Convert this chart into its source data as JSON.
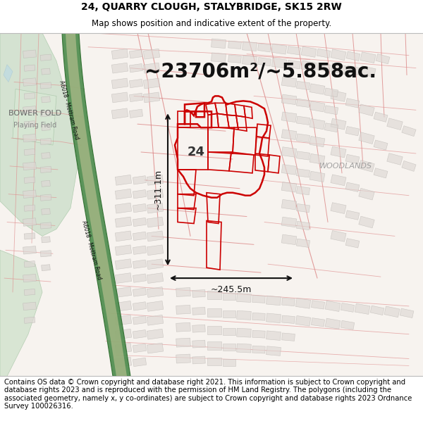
{
  "title_line1": "24, QUARRY CLOUGH, STALYBRIDGE, SK15 2RW",
  "title_line2": "Map shows position and indicative extent of the property.",
  "area_text": "~23706m²/~5.858ac.",
  "label_24": "24",
  "dimension_v": "~311.1m",
  "dimension_h": "~245.5m",
  "woodlands_label": "WOODLANDS",
  "bower_fold_label": "BOWER FOLD",
  "bower_fold_sub": "Playing Field",
  "road_label_top": "A6018 - Mottram Road",
  "road_label_bot": "A6018 - Mottram Road",
  "footer_text": "Contains OS data © Crown copyright and database right 2021. This information is subject to Crown copyright and database rights 2023 and is reproduced with the permission of HM Land Registry. The polygons (including the associated geometry, namely x, y co-ordinates) are subject to Crown copyright and database rights 2023 Ordnance Survey 100026316.",
  "bg_color": "#ffffff",
  "map_bg": "#f7f3ef",
  "highlight_color": "#cc0000",
  "green_area_color": "#d4e8d0",
  "road_band_color": "#4a8a4a",
  "road_inner_color": "#c8c8c8",
  "street_line_color": "#e08888",
  "building_face_color": "#e8e0e0",
  "building_edge_color": "#c88888",
  "grey_building_color": "#d8d4d0",
  "grey_building_edge": "#b8b4b0",
  "title_fontsize": 10,
  "subtitle_fontsize": 8.5,
  "area_fontsize": 20,
  "footer_fontsize": 7.2,
  "dim_fontsize": 9,
  "label_fontsize": 7,
  "woodlands_fontsize": 8,
  "bower_fontsize": 8
}
